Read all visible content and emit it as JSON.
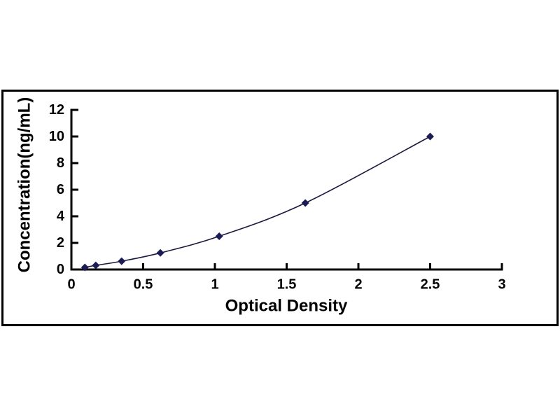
{
  "chart_data": {
    "type": "line",
    "subtype": "scatter-line-standard-curve",
    "xlabel": "Optical Density",
    "ylabel": "Concentration(ng/mL)",
    "x": [
      0.094,
      0.17,
      0.35,
      0.62,
      1.03,
      1.63,
      2.5
    ],
    "y": [
      0.156,
      0.312,
      0.625,
      1.25,
      2.5,
      5,
      10
    ],
    "xlim": [
      0,
      3
    ],
    "ylim": [
      0,
      12
    ],
    "xticks": [
      0,
      0.5,
      1,
      1.5,
      2,
      2.5,
      3
    ],
    "yticks": [
      0,
      2,
      4,
      6,
      8,
      10,
      12
    ],
    "grid": false,
    "legend": false,
    "marker": "diamond",
    "colors": {
      "axis": "#000000",
      "text": "#000000",
      "marker": "#1c1c55",
      "line": "#1a1a3e",
      "frame_border": "#000000",
      "background": "#ffffff"
    }
  }
}
